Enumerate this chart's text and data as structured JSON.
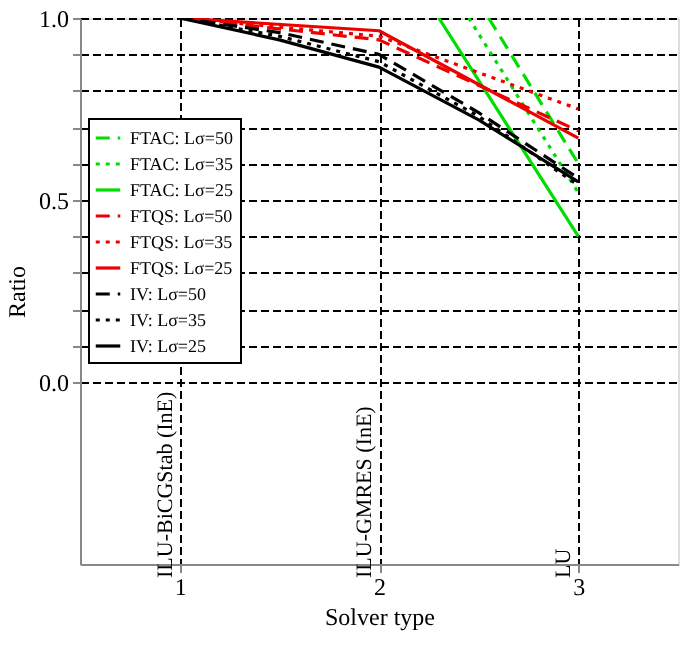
{
  "chart_data": {
    "type": "line",
    "xlabel": "Solver type",
    "ylabel": "Ratio",
    "xlim": [
      0.5,
      3.5
    ],
    "xticks": [
      1,
      2,
      3
    ],
    "ylim": [
      -0.5,
      1.0
    ],
    "yticks": [
      {
        "value": 0.0,
        "label": "0.0"
      },
      {
        "value": 0.1,
        "label": null
      },
      {
        "value": 0.2,
        "label": null
      },
      {
        "value": 0.3,
        "label": null
      },
      {
        "value": 0.4,
        "label": null
      },
      {
        "value": 0.5,
        "label": "0.5"
      },
      {
        "value": 0.6,
        "label": null
      },
      {
        "value": 0.7,
        "label": null
      },
      {
        "value": 0.8,
        "label": null
      },
      {
        "value": 0.9,
        "label": null
      },
      {
        "value": 1.0,
        "label": "1.0"
      }
    ],
    "grid": true,
    "legend": "left",
    "marker": "none",
    "series": [
      {
        "name": "FTAC: Lσ=50",
        "color": "#00dd00",
        "line_style": "dashed",
        "x": [
          2.55,
          3
        ],
        "values": [
          1.0,
          0.6
        ]
      },
      {
        "name": "FTAC: Lσ=35",
        "color": "#00dd00",
        "line_style": "dotted",
        "x": [
          2.45,
          3
        ],
        "values": [
          1.0,
          0.52
        ]
      },
      {
        "name": "FTAC: Lσ=25",
        "color": "#00dd00",
        "line_style": "solid",
        "x": [
          2.3,
          3
        ],
        "values": [
          1.0,
          0.4
        ]
      },
      {
        "name": "FTQS: Lσ=50",
        "color": "#ee0000",
        "line_style": "dashed",
        "x": [
          1,
          2,
          3
        ],
        "values": [
          1.0,
          0.94,
          0.69
        ]
      },
      {
        "name": "FTQS: Lσ=35",
        "color": "#ee0000",
        "line_style": "dotted",
        "x": [
          1,
          2,
          3
        ],
        "values": [
          1.0,
          0.95,
          0.75
        ]
      },
      {
        "name": "FTQS: Lσ=25",
        "color": "#ee0000",
        "line_style": "solid",
        "x": [
          1,
          2,
          3
        ],
        "values": [
          1.0,
          0.965,
          0.67
        ]
      },
      {
        "name": "IV: Lσ=50",
        "color": "#000000",
        "line_style": "dashed",
        "x": [
          1,
          1.5,
          2,
          2.5,
          3
        ],
        "values": [
          1.0,
          0.96,
          0.9,
          0.74,
          0.56
        ]
      },
      {
        "name": "IV: Lσ=35",
        "color": "#000000",
        "line_style": "dotted",
        "x": [
          1,
          1.5,
          2,
          2.5,
          3
        ],
        "values": [
          1.0,
          0.95,
          0.88,
          0.73,
          0.54
        ]
      },
      {
        "name": "IV: Lσ=25",
        "color": "#000000",
        "line_style": "solid",
        "x": [
          1,
          1.5,
          2,
          2.5,
          3
        ],
        "values": [
          1.0,
          0.94,
          0.865,
          0.72,
          0.55
        ]
      }
    ],
    "annotations": [
      "ILU-BiCGStab (InE)",
      "ILU-GMRES (InE)",
      "LU"
    ]
  }
}
